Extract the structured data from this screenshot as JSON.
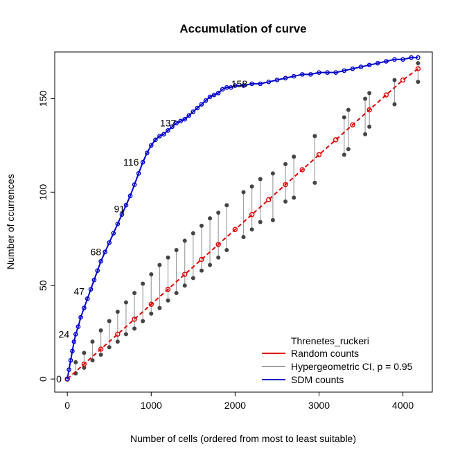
{
  "chart_data": {
    "type": "line",
    "title": "Accumulation of curve",
    "xlabel": "Number of cells (ordered from most to least suitable)",
    "ylabel": "Number of ccurrences",
    "xlim": [
      -150,
      4350
    ],
    "ylim": [
      -7,
      175
    ],
    "x_ticks": [
      0,
      1000,
      2000,
      3000,
      4000
    ],
    "y_ticks": [
      0,
      50,
      100,
      150
    ],
    "grid": false,
    "legend": {
      "placement": "bottom-right",
      "title": "Threnetes_ruckeri",
      "entries": [
        {
          "label": "Random counts",
          "color": "#e00000"
        },
        {
          "label": "Hypergeometric CI, p = 0.95",
          "color": "#a0a0a0"
        },
        {
          "label": "SDM counts",
          "color": "#0000cc"
        }
      ]
    },
    "annotations": [
      {
        "text": "0",
        "x": -100,
        "y": 0
      },
      {
        "text": "24",
        "x": -40,
        "y": 24
      },
      {
        "text": "47",
        "x": 140,
        "y": 47
      },
      {
        "text": "68",
        "x": 340,
        "y": 68
      },
      {
        "text": "91",
        "x": 620,
        "y": 91
      },
      {
        "text": "116",
        "x": 760,
        "y": 116
      },
      {
        "text": "137",
        "x": 1200,
        "y": 137
      },
      {
        "text": "158",
        "x": 2050,
        "y": 158
      }
    ],
    "series": [
      {
        "name": "SDM counts",
        "color": "#0000cc",
        "x": [
          0,
          20,
          40,
          60,
          80,
          100,
          130,
          160,
          200,
          240,
          280,
          320,
          360,
          400,
          450,
          500,
          550,
          600,
          650,
          700,
          750,
          800,
          850,
          900,
          950,
          1000,
          1050,
          1100,
          1150,
          1200,
          1250,
          1300,
          1350,
          1400,
          1450,
          1500,
          1550,
          1600,
          1650,
          1700,
          1750,
          1800,
          1850,
          1900,
          1950,
          2000,
          2100,
          2200,
          2300,
          2400,
          2500,
          2600,
          2700,
          2800,
          2900,
          3000,
          3100,
          3200,
          3300,
          3400,
          3500,
          3600,
          3700,
          3800,
          3900,
          4000,
          4100,
          4180
        ],
        "y": [
          0,
          5,
          10,
          15,
          20,
          24,
          28,
          33,
          38,
          43,
          48,
          53,
          58,
          63,
          68,
          73,
          78,
          83,
          88,
          93,
          98,
          104,
          110,
          116,
          121,
          125,
          128,
          130,
          131,
          133,
          135,
          137,
          138,
          139,
          141,
          143,
          145,
          147,
          149,
          151,
          152,
          153,
          155,
          156,
          156,
          157,
          157,
          158,
          158,
          159,
          160,
          161,
          162,
          163,
          163,
          164,
          164,
          164,
          165,
          166,
          167,
          168,
          169,
          170,
          171,
          171,
          172,
          172
        ]
      },
      {
        "name": "Random counts",
        "color": "#e00000",
        "x": [
          0,
          200,
          400,
          600,
          800,
          1000,
          1200,
          1400,
          1600,
          1800,
          2000,
          2200,
          2400,
          2600,
          2800,
          3000,
          3200,
          3400,
          3600,
          3800,
          4000,
          4180
        ],
        "y": [
          0,
          8,
          16,
          24,
          32,
          40,
          48,
          56,
          64,
          72,
          80,
          88,
          96,
          104,
          112,
          120,
          128,
          136,
          144,
          152,
          160,
          166
        ]
      }
    ],
    "ci_band": {
      "name": "Hypergeometric CI, p = 0.95",
      "x": [
        100,
        200,
        300,
        400,
        500,
        600,
        700,
        800,
        900,
        1000,
        1100,
        1200,
        1300,
        1400,
        1500,
        1600,
        1700,
        1800,
        1900,
        2100,
        2200,
        2300,
        2450,
        2600,
        2700,
        2950,
        3300,
        3350,
        3550,
        3600,
        3900,
        4180
      ],
      "lower": [
        3,
        6,
        10,
        13,
        17,
        20,
        24,
        27,
        31,
        35,
        38,
        42,
        46,
        50,
        54,
        58,
        61,
        65,
        69,
        76,
        80,
        84,
        85,
        95,
        97,
        105,
        120,
        123,
        131,
        135,
        147,
        159
      ],
      "upper": [
        9,
        14,
        20,
        26,
        31,
        36,
        41,
        46,
        51,
        56,
        61,
        65,
        69,
        74,
        78,
        82,
        86,
        89,
        93,
        100,
        103,
        107,
        110,
        115,
        119,
        130,
        140,
        144,
        150,
        153,
        160,
        169
      ]
    }
  }
}
